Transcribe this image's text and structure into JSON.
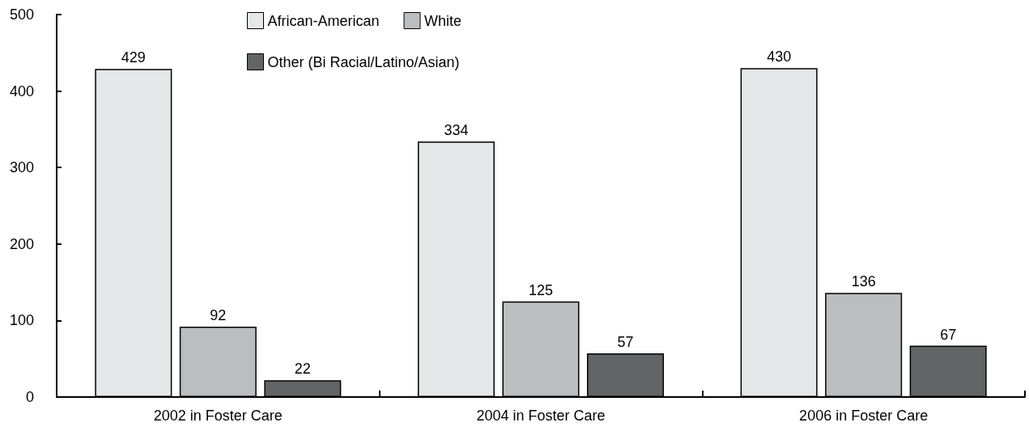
{
  "chart_data": {
    "type": "bar",
    "categories": [
      "2002 in Foster Care",
      "2004 in Foster Care",
      "2006 in Foster Care"
    ],
    "series": [
      {
        "name": "African-American",
        "color": "#e6e7e8",
        "values": [
          429,
          334,
          430
        ]
      },
      {
        "name": "White",
        "color": "#bcbdc0",
        "values": [
          92,
          125,
          136
        ]
      },
      {
        "name": "Other (Bi Racial/Latino/Asian)",
        "color": "#636466",
        "values": [
          22,
          57,
          67
        ]
      }
    ],
    "ylim": [
      0,
      500
    ],
    "yticks": [
      0,
      100,
      200,
      300,
      400,
      500
    ],
    "grid": false,
    "legend": "top",
    "data_labels": true
  }
}
